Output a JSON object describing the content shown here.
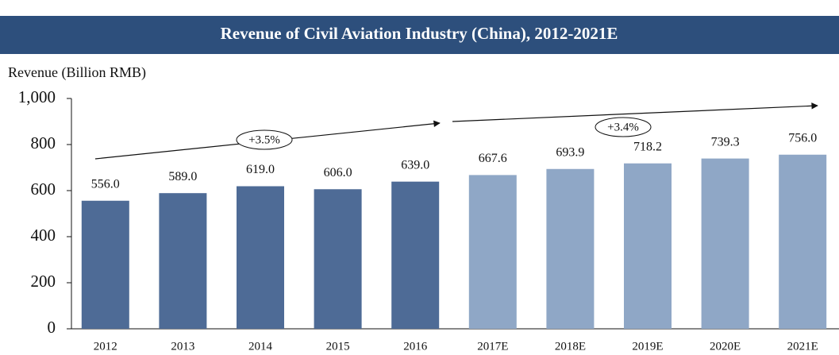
{
  "chart_data": {
    "type": "bar",
    "title": "Revenue of Civil Aviation Industry (China), 2012-2021E",
    "y_label": "Revenue (Billion RMB)",
    "categories": [
      "2012",
      "2013",
      "2014",
      "2015",
      "2016",
      "2017E",
      "2018E",
      "2019E",
      "2020E",
      "2021E"
    ],
    "values": [
      556,
      589,
      619,
      606,
      639,
      667.6,
      693.9,
      718.2,
      739.3,
      756
    ],
    "value_labels": [
      "556.0",
      "589.0",
      "619.0",
      "606.0",
      "639.0",
      "667.6",
      "693.9",
      "718.2",
      "739.3",
      "756.0"
    ],
    "colors": [
      "#4e6b96",
      "#4e6b96",
      "#4e6b96",
      "#4e6b96",
      "#4e6b96",
      "#8fa7c6",
      "#8fa7c6",
      "#8fa7c6",
      "#8fa7c6",
      "#8fa7c6"
    ],
    "ylim": [
      0,
      1000
    ],
    "yticks": [
      0,
      200,
      400,
      600,
      800,
      {
        "value": 1000,
        "label": "1,000"
      }
    ],
    "annotations": [
      "+3.5%",
      "+3.4%"
    ]
  }
}
